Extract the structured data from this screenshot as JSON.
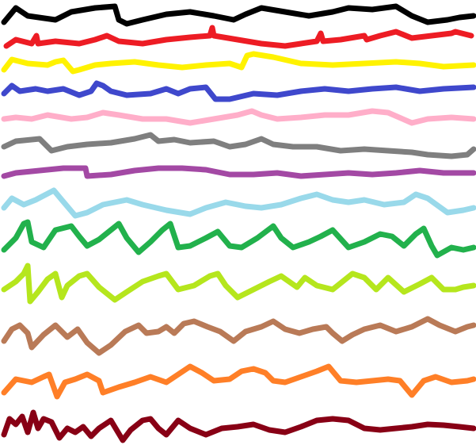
{
  "background": "#ffffff",
  "strokes": [
    {
      "name": "black-line",
      "color": "#000000"
    },
    {
      "name": "red-line",
      "color": "#ed1c24"
    },
    {
      "name": "yellow-line",
      "color": "#fff200"
    },
    {
      "name": "blue-line",
      "color": "#3f48cc"
    },
    {
      "name": "pink-line",
      "color": "#ffaec9"
    },
    {
      "name": "gray-line",
      "color": "#7f7f7f"
    },
    {
      "name": "purple-line",
      "color": "#a349a4"
    },
    {
      "name": "light-blue-line",
      "color": "#99d9ea"
    },
    {
      "name": "green-line",
      "color": "#22b14c"
    },
    {
      "name": "lime-line",
      "color": "#b5e61d"
    },
    {
      "name": "brown-line",
      "color": "#b97a57"
    },
    {
      "name": "orange-line",
      "color": "#ff7f27"
    },
    {
      "name": "dark-red-line",
      "color": "#880015"
    }
  ]
}
